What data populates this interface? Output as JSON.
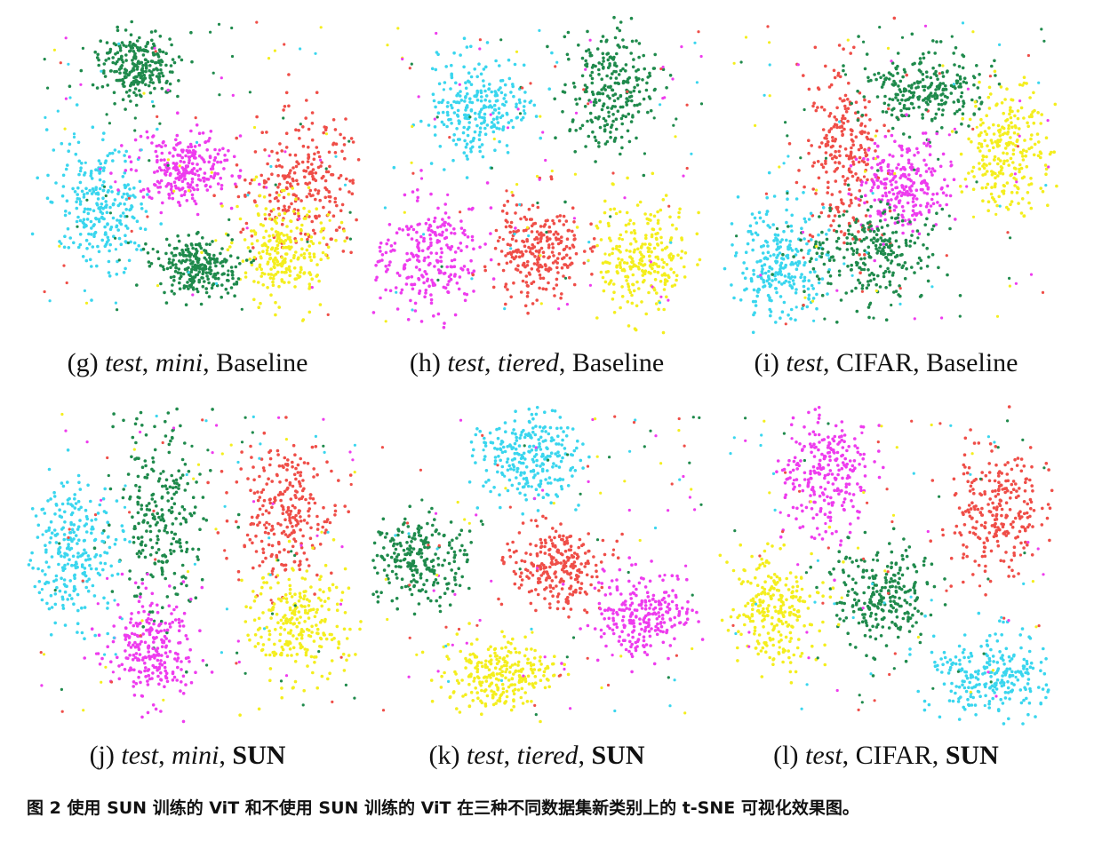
{
  "panels": [
    {
      "segments": [
        "(g) ",
        "test",
        ", ",
        "mini",
        ", Baseline"
      ],
      "styles": [
        "roman",
        "italic",
        "roman",
        "italic",
        "roman"
      ]
    },
    {
      "segments": [
        "(h) ",
        "test",
        ", ",
        "tiered",
        ", Baseline"
      ],
      "styles": [
        "roman",
        "italic",
        "roman",
        "italic",
        "roman"
      ]
    },
    {
      "segments": [
        "(i) ",
        "test",
        ", CIFAR, Baseline"
      ],
      "styles": [
        "roman",
        "italic",
        "roman"
      ]
    },
    {
      "segments": [
        "(j) ",
        "test",
        ", ",
        "mini",
        ", ",
        "SUN"
      ],
      "styles": [
        "roman",
        "italic",
        "roman",
        "italic",
        "roman",
        "bold"
      ]
    },
    {
      "segments": [
        "(k) ",
        "test",
        ", ",
        "tiered",
        ", ",
        "SUN"
      ],
      "styles": [
        "roman",
        "italic",
        "roman",
        "italic",
        "roman",
        "bold"
      ]
    },
    {
      "segments": [
        "(l) ",
        "test",
        ", CIFAR, ",
        "SUN"
      ],
      "styles": [
        "roman",
        "italic",
        "roman",
        "bold"
      ]
    }
  ],
  "figure_caption": "图 2 使用 SUN 训练的 ViT 和不使用 SUN 训练的 ViT 在三种不同数据集新类别上的 t-SNE 可视化效果图。"
}
